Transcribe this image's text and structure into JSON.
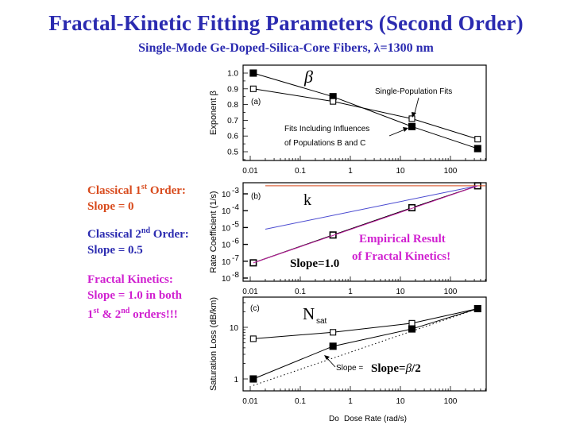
{
  "title": "Fractal-Kinetic Fitting Parameters (Second Order)",
  "subtitle": "Single-Mode Ge-Doped-Silica-Core Fibers, λ=1300 nm",
  "notes": {
    "classical_first": {
      "line1": "Classical 1",
      "sup1": "st",
      "line1b": " Order:",
      "line2": "Slope = 0",
      "color": "#d84a1c"
    },
    "classical_second": {
      "line1": "Classical 2",
      "sup1": "nd",
      "line1b": " Order:",
      "line2": "Slope = 0.5",
      "color": "#2b2bb0"
    },
    "fractal": {
      "line1": "Fractal Kinetics:",
      "line2": "Slope = 1.0 in both",
      "line3a": "1",
      "sup3a": "st",
      "line3b": " & 2",
      "sup3b": "nd",
      "line3c": " orders!!!",
      "color": "#d020d0"
    }
  },
  "chart_data": [
    {
      "panel": "(a)",
      "type": "line",
      "title": "β",
      "xlabel": "Dose Rate (rad/s)",
      "ylabel": "Exponent β",
      "xscale": "log",
      "xlim": [
        0.01,
        500
      ],
      "ylim": [
        0.45,
        1.05
      ],
      "x_ticks": [
        "0.01",
        "0.1",
        "1",
        "10",
        "100"
      ],
      "y_ticks": [
        "0.5",
        "0.6",
        "0.7",
        "0.8",
        "0.9",
        "1.0"
      ],
      "series": [
        {
          "name": "Fits Including Influences of Populations B and C",
          "marker": "filled-square",
          "x": [
            0.0115,
            0.45,
            17,
            350
          ],
          "y": [
            1.0,
            0.85,
            0.66,
            0.52
          ]
        },
        {
          "name": "Single-Population Fits",
          "marker": "open-square",
          "x": [
            0.0115,
            0.45,
            17,
            350
          ],
          "y": [
            0.9,
            0.82,
            0.71,
            0.58
          ]
        }
      ],
      "annotations": [
        "Single-Population Fits",
        "Fits Including Influences",
        "of Populations B and C",
        "β"
      ]
    },
    {
      "panel": "(b)",
      "type": "line",
      "title": "k",
      "ylabel": "Rate Coefficient (1/s)",
      "xscale": "log",
      "yscale": "log",
      "xlim": [
        0.01,
        500
      ],
      "ylim": [
        1e-08,
        0.003
      ],
      "x_ticks": [
        "0.01",
        "0.1",
        "1",
        "10",
        "100"
      ],
      "y_ticks": [
        "10^-8",
        "10^-7",
        "10^-6",
        "10^-5",
        "10^-4",
        "10^-3"
      ],
      "series": [
        {
          "name": "Data (filled)",
          "marker": "filled-square",
          "x": [
            0.0115,
            0.45,
            17,
            350
          ],
          "y": [
            8e-08,
            3.6e-06,
            0.00015,
            0.003
          ]
        },
        {
          "name": "Data (open)",
          "marker": "open-square",
          "x": [
            0.0115,
            0.45,
            17,
            350
          ],
          "y": [
            8e-08,
            3.6e-06,
            0.00015,
            0.003
          ]
        },
        {
          "name": "Classical 1st Order (slope 0)",
          "color": "#d84a1c",
          "x": [
            0.02,
            500
          ],
          "y": [
            0.003,
            0.003
          ]
        },
        {
          "name": "Classical 2nd Order (slope 0.5)",
          "color": "#4a4ad0",
          "x": [
            0.02,
            350
          ],
          "y": [
            8e-06,
            0.003
          ]
        },
        {
          "name": "Fractal Kinetics (slope 1.0)",
          "color": "#c020a0",
          "x": [
            0.0115,
            350
          ],
          "y": [
            8e-08,
            0.003
          ]
        }
      ],
      "annotations": [
        "(b)",
        "k",
        "Slope=1.0",
        "Empirical Result",
        "of Fractal Kinetics!"
      ]
    },
    {
      "panel": "(c)",
      "type": "line",
      "title": "N_sat",
      "xlabel": "Dose Rate (rad/s)",
      "ylabel": "Saturation Loss (dB/km)",
      "xscale": "log",
      "yscale": "log",
      "xlim": [
        0.01,
        500
      ],
      "ylim": [
        0.6,
        35
      ],
      "x_ticks": [
        "0.01",
        "0.1",
        "1",
        "10",
        "100"
      ],
      "y_ticks": [
        "1",
        "10"
      ],
      "series": [
        {
          "name": "Open squares",
          "marker": "open-square",
          "x": [
            0.0115,
            0.45,
            17,
            350
          ],
          "y": [
            6.0,
            8.0,
            12.0,
            23.0
          ]
        },
        {
          "name": "Filled squares",
          "marker": "filled-square",
          "x": [
            0.0115,
            0.45,
            17,
            350
          ],
          "y": [
            1.0,
            4.3,
            9.3,
            23.0
          ]
        },
        {
          "name": "Slope = beta/2 (dotted)",
          "style": "dotted",
          "x": [
            0.0115,
            350
          ],
          "y": [
            0.75,
            23.0
          ]
        }
      ],
      "annotations": [
        "(c)",
        "N",
        "sat",
        "Slope =",
        "Slope=β/2"
      ]
    }
  ],
  "labels": {
    "panel_a": "(a)",
    "panel_b": "(b)",
    "panel_c": "(c)",
    "beta_symbol": "β",
    "k_symbol": "k",
    "N": "N",
    "sat": "sat",
    "single_pop": "Single-Population Fits",
    "fits_incl1": "Fits Including Influences",
    "fits_incl2": "of Populations B and C",
    "slope10": "Slope=1.0",
    "empirical1": "Empirical Result",
    "empirical2": "of Fractal Kinetics!",
    "slope_eq_small": "Slope =",
    "slope_beta": "Slope=β/2",
    "xlabel_prefix": "Do",
    "xlabel": "Dose Rate (rad/s)",
    "ylabel_a": "Exponent β",
    "ylabel_b": "Rate Coefficient (1/s)",
    "ylabel_c": "Saturation Loss (dB/km)",
    "xticks": [
      "0.01",
      "0.1",
      "1",
      "10",
      "100"
    ],
    "yticks_a": [
      "1.0",
      "0.9",
      "0.8",
      "0.7",
      "0.6",
      "0.5"
    ],
    "yticks_c": [
      "10",
      "1"
    ]
  }
}
